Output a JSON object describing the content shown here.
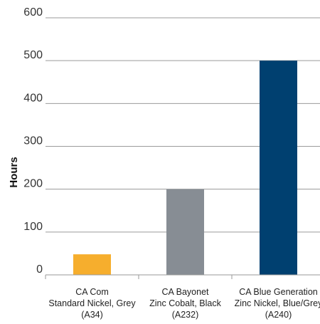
{
  "chart_data": {
    "type": "bar",
    "title": "",
    "xlabel": "",
    "ylabel": "Hours",
    "ylim": [
      0,
      600
    ],
    "yticks": [
      0,
      100,
      200,
      300,
      400,
      500,
      600
    ],
    "grid": true,
    "categories": [
      [
        "CA Com",
        "Standard Nickel, Grey",
        "(A34)"
      ],
      [
        "CA Bayonet",
        "Zinc Cobalt, Black",
        "(A232)"
      ],
      [
        "CA Blue Generation",
        "Zinc Nickel, Blue/Grey",
        "(A240)"
      ]
    ],
    "values": [
      48,
      200,
      500
    ],
    "colors": [
      "#f6ae2d",
      "#878d94",
      "#004070"
    ]
  }
}
